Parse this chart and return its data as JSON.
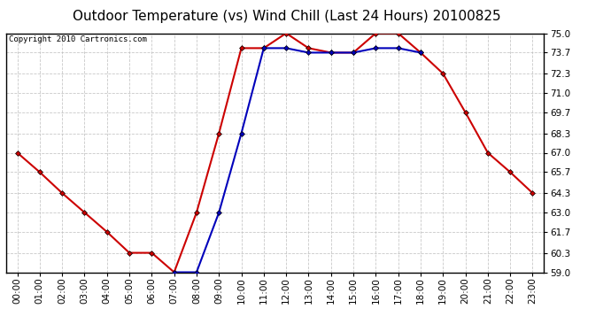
{
  "title": "Outdoor Temperature (vs) Wind Chill (Last 24 Hours) 20100825",
  "copyright": "Copyright 2010 Cartronics.com",
  "x_labels": [
    "00:00",
    "01:00",
    "02:00",
    "03:00",
    "04:00",
    "05:00",
    "06:00",
    "07:00",
    "08:00",
    "09:00",
    "10:00",
    "11:00",
    "12:00",
    "13:00",
    "14:00",
    "15:00",
    "16:00",
    "17:00",
    "18:00",
    "19:00",
    "20:00",
    "21:00",
    "22:00",
    "23:00"
  ],
  "temp_red": [
    67.0,
    65.7,
    64.3,
    63.0,
    61.7,
    60.3,
    60.3,
    59.0,
    63.0,
    68.3,
    74.0,
    74.0,
    75.0,
    74.0,
    73.7,
    73.7,
    75.0,
    75.0,
    73.7,
    72.3,
    69.7,
    67.0,
    65.7,
    64.3
  ],
  "wind_blue": [
    null,
    null,
    null,
    null,
    null,
    null,
    null,
    59.0,
    59.0,
    63.0,
    68.3,
    74.0,
    74.0,
    73.7,
    73.7,
    73.7,
    74.0,
    74.0,
    73.7,
    null,
    null,
    null,
    null,
    null
  ],
  "ylim_min": 59.0,
  "ylim_max": 75.0,
  "yticks": [
    59.0,
    60.3,
    61.7,
    63.0,
    64.3,
    65.7,
    67.0,
    68.3,
    69.7,
    71.0,
    72.3,
    73.7,
    75.0
  ],
  "red_color": "#cc0000",
  "blue_color": "#0000bb",
  "bg_color": "#ffffff",
  "plot_bg_color": "#ffffff",
  "grid_color": "#bbbbbb",
  "title_fontsize": 11,
  "tick_fontsize": 7.5,
  "copyright_fontsize": 6.5
}
